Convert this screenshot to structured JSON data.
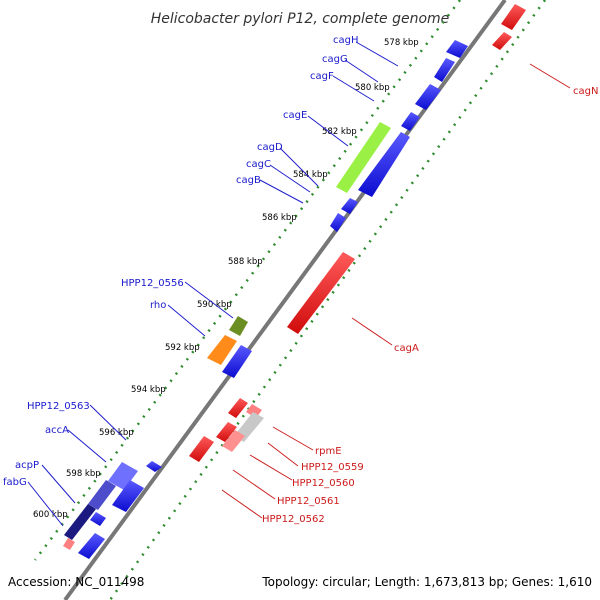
{
  "title": "Helicobacter pylori P12, complete genome",
  "footer": {
    "accession": "Accession: NC_011498",
    "topology": "Topology: circular; Length: 1,673,813 bp; Genes: 1,610"
  },
  "colors": {
    "forward": "#1f1fe6",
    "reverse": "#e61f1f",
    "backbone": "#808080",
    "ruler_dots": "#2e8b2e"
  },
  "ruler_labels": [
    "578 kbp",
    "580 kbp",
    "582 kbp",
    "584 kbp",
    "586 kbp",
    "588 kbp",
    "590 kbp",
    "592 kbp",
    "594 kbp",
    "596 kbp",
    "598 kbp",
    "600 kbp"
  ],
  "forward_labels": [
    "cagH",
    "cagG",
    "cagF",
    "cagE",
    "cagD",
    "cagC",
    "cagB",
    "HPP12_0556",
    "rho",
    "HPP12_0563",
    "accA",
    "acpP",
    "fabG"
  ],
  "reverse_labels": [
    "cagN",
    "cagA",
    "rpmE",
    "HPP12_0559",
    "HPP12_0560",
    "HPP12_0561",
    "HPP12_0562"
  ]
}
